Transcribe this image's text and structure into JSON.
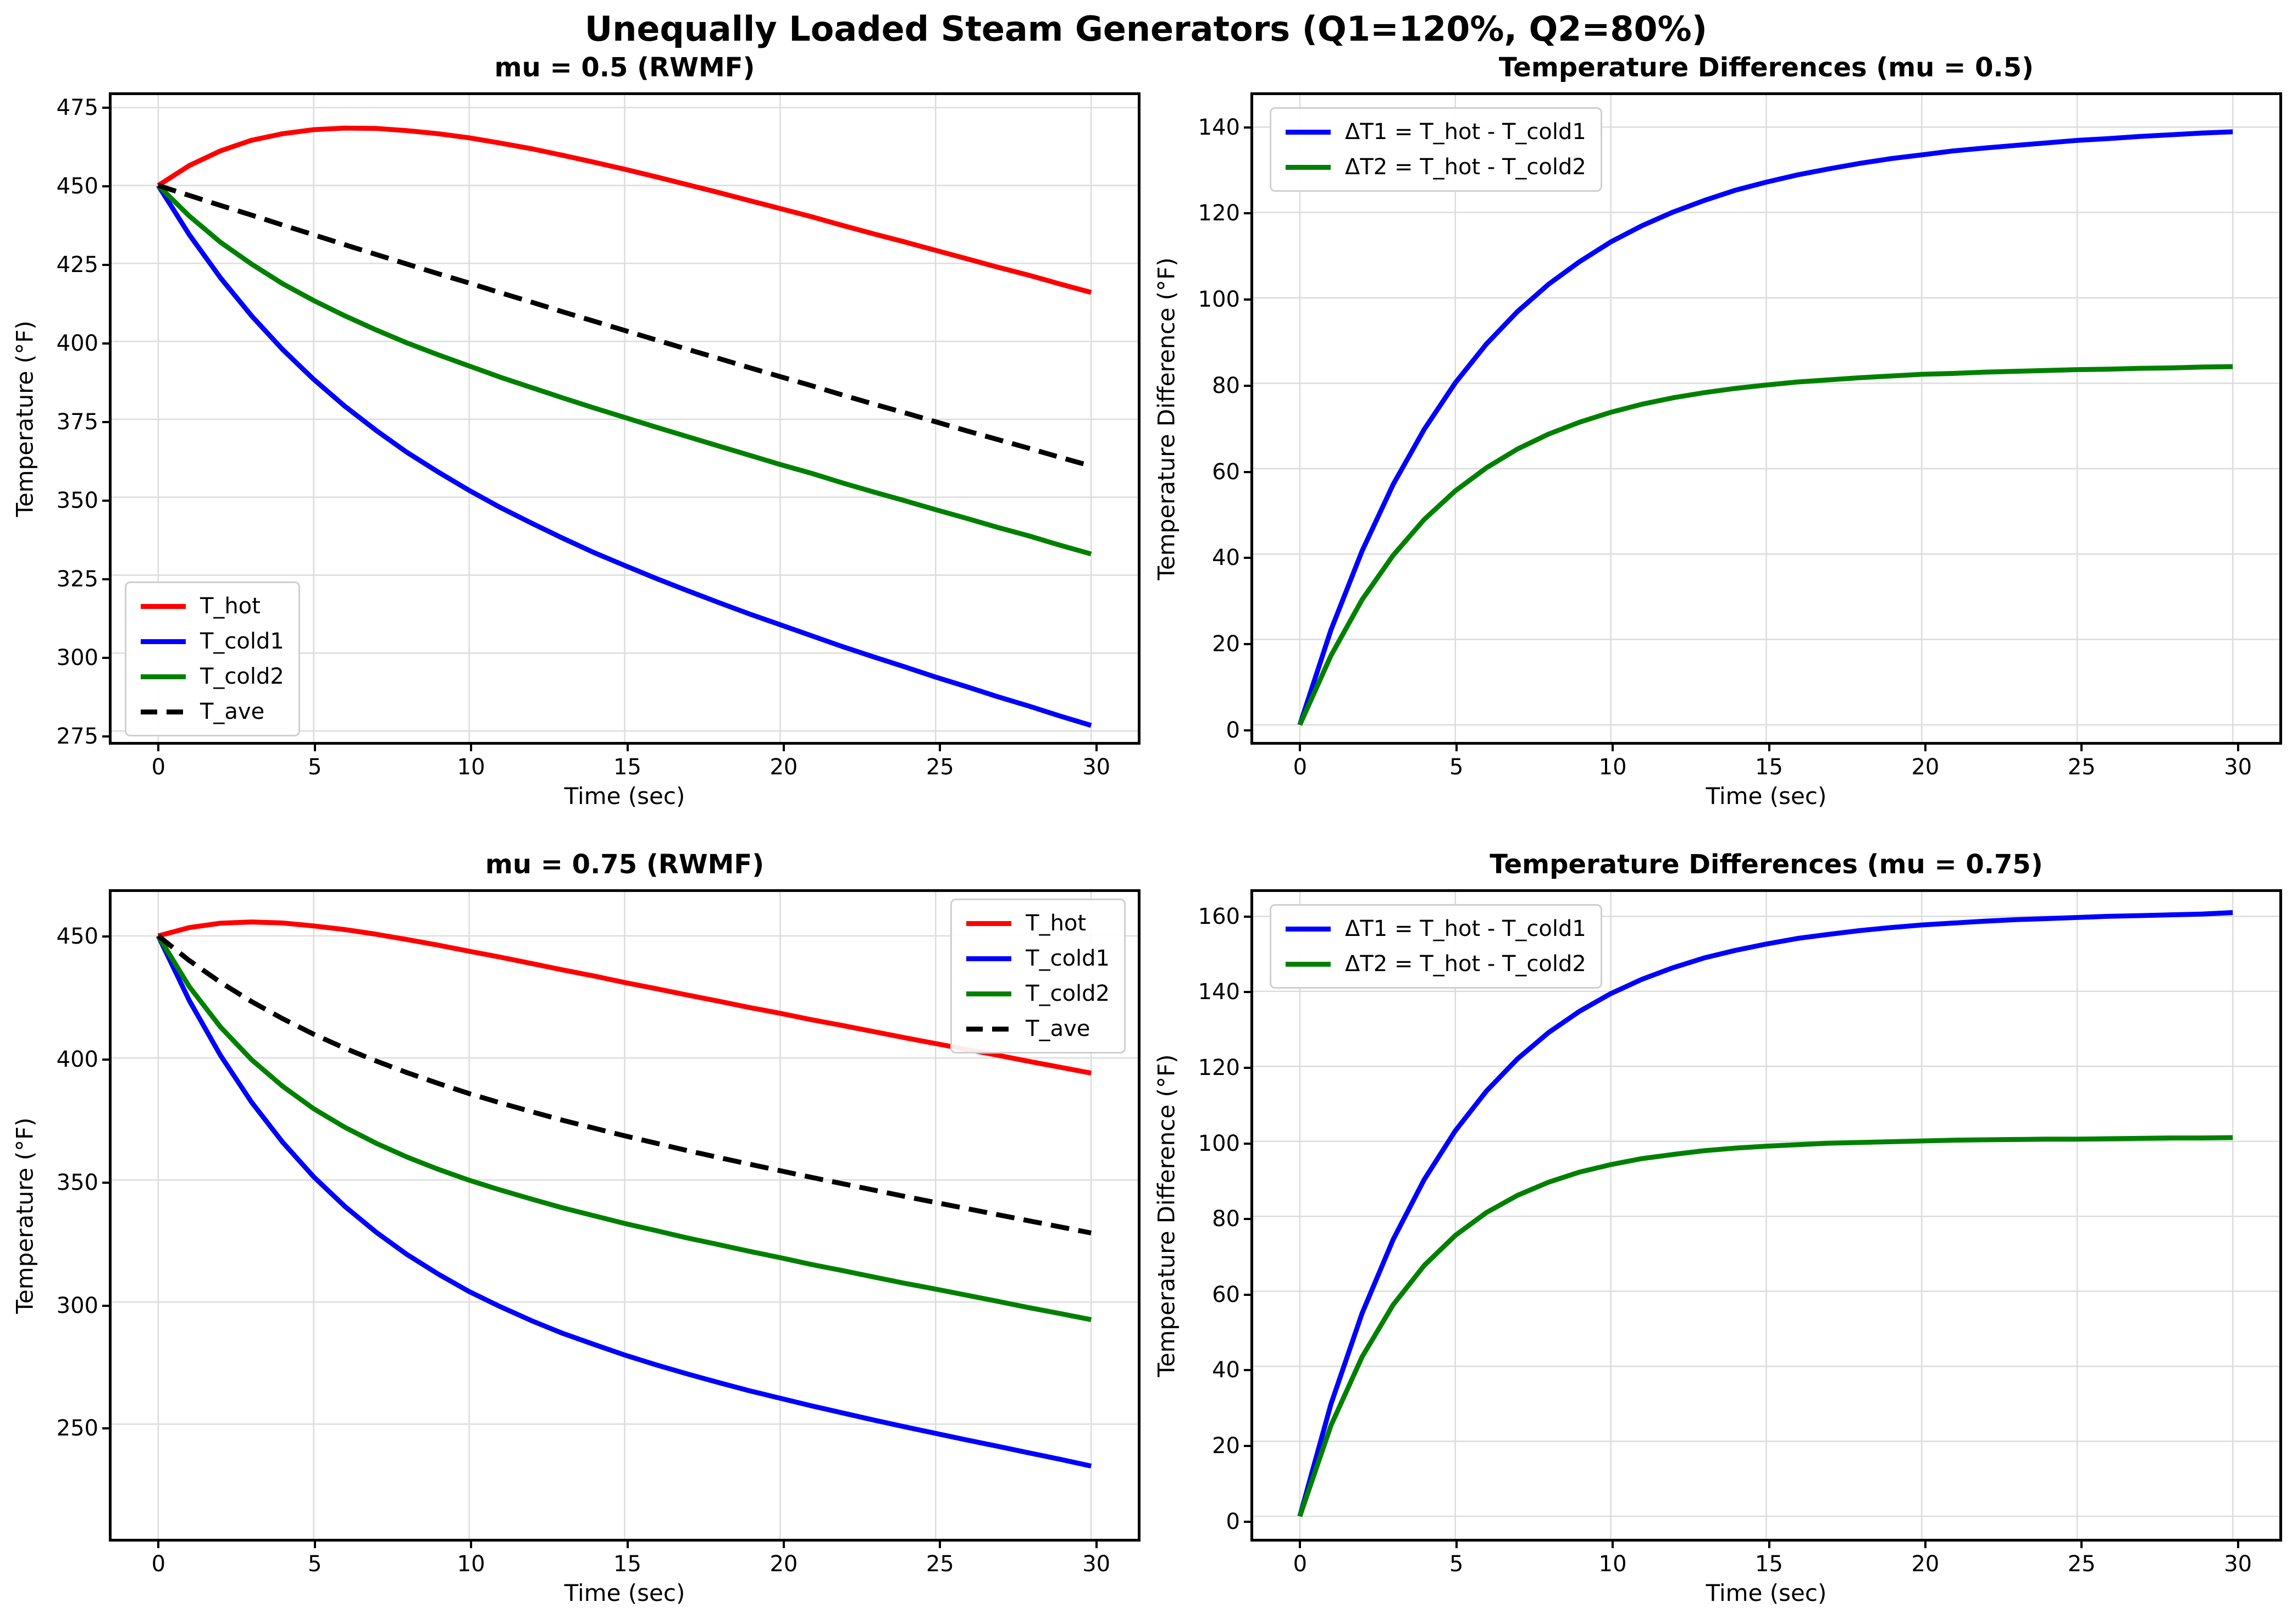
{
  "suptitle": "Unequally Loaded Steam Generators (Q1=120%, Q2=80%)",
  "style": {
    "grid_color": "#dcdcdc",
    "spine_color": "#000000",
    "background": "#ffffff",
    "series_red": "#ff0000",
    "series_blue": "#0000ff",
    "series_green": "#008000",
    "series_black": "#000000"
  },
  "chart_data": [
    {
      "type": "line",
      "title": "mu = 0.5 (RWMF)",
      "xlabel": "Time (sec)",
      "ylabel": "Temperature (°F)",
      "xlim": [
        -1.5,
        31.5
      ],
      "ylim": [
        271.5,
        479
      ],
      "xticks": [
        0,
        5,
        10,
        15,
        20,
        25,
        30
      ],
      "yticks": [
        275,
        300,
        325,
        350,
        375,
        400,
        425,
        450,
        475
      ],
      "grid": true,
      "legend_position": "lower-left",
      "x": [
        0,
        1,
        2,
        3,
        4,
        5,
        6,
        7,
        8,
        9,
        10,
        11,
        12,
        13,
        14,
        15,
        16,
        17,
        18,
        19,
        20,
        21,
        22,
        23,
        24,
        25,
        26,
        27,
        28,
        29,
        30
      ],
      "series": [
        {
          "name": "T_hot",
          "label": "T_hot",
          "color": "#ff0000",
          "linestyle": "solid",
          "values": [
            450,
            456.4,
            461.1,
            464.5,
            466.6,
            467.9,
            468.4,
            468.3,
            467.6,
            466.6,
            465.3,
            463.6,
            461.8,
            459.7,
            457.5,
            455.2,
            452.8,
            450.3,
            447.8,
            445.2,
            442.6,
            440,
            437.2,
            434.5,
            431.9,
            429.2,
            426.5,
            423.8,
            421.2,
            418.4,
            415.7
          ]
        },
        {
          "name": "T_cold1",
          "label": "T_cold1",
          "color": "#0000ff",
          "linestyle": "solid",
          "values": [
            450,
            434.2,
            420.4,
            408.2,
            397.4,
            387.8,
            379.2,
            371.5,
            364.4,
            358.1,
            352.2,
            346.7,
            341.7,
            336.9,
            332.3,
            328.1,
            324,
            320.1,
            316.3,
            312.6,
            309.1,
            305.6,
            302.1,
            298.8,
            295.6,
            292.3,
            289.2,
            286,
            283,
            279.8,
            276.8
          ]
        },
        {
          "name": "T_cold2",
          "label": "T_cold2",
          "color": "#008000",
          "linestyle": "solid",
          "values": [
            450,
            440.2,
            431.8,
            424.8,
            418.5,
            413.1,
            408.2,
            403.7,
            399.5,
            395.7,
            392.1,
            388.5,
            385.2,
            381.9,
            378.7,
            375.6,
            372.5,
            369.5,
            366.5,
            363.5,
            360.5,
            357.7,
            354.6,
            351.7,
            348.9,
            346,
            343.2,
            340.3,
            337.6,
            334.6,
            331.8
          ]
        },
        {
          "name": "T_ave",
          "label": "T_ave",
          "color": "#000000",
          "linestyle": "dashed",
          "values": [
            450,
            446.8,
            443.6,
            440.5,
            437.3,
            434.2,
            431,
            427.9,
            424.8,
            421.7,
            418.7,
            415.6,
            412.6,
            409.5,
            406.5,
            403.5,
            400.5,
            397.5,
            394.6,
            391.6,
            388.7,
            385.8,
            382.8,
            379.9,
            377.1,
            374.2,
            371.3,
            368.5,
            365.7,
            362.8,
            360
          ]
        }
      ]
    },
    {
      "type": "line",
      "title": "Temperature Differences (mu = 0.5)",
      "xlabel": "Time (sec)",
      "ylabel": "Temperature Difference (°F)",
      "xlim": [
        -1.5,
        31.5
      ],
      "ylim": [
        -4,
        147.5
      ],
      "xticks": [
        0,
        5,
        10,
        15,
        20,
        25,
        30
      ],
      "yticks": [
        0,
        20,
        40,
        60,
        80,
        100,
        120,
        140
      ],
      "grid": true,
      "legend_position": "upper-left",
      "x": [
        0,
        1,
        2,
        3,
        4,
        5,
        6,
        7,
        8,
        9,
        10,
        11,
        12,
        13,
        14,
        15,
        16,
        17,
        18,
        19,
        20,
        21,
        22,
        23,
        24,
        25,
        26,
        27,
        28,
        29,
        30
      ],
      "series": [
        {
          "name": "dT1",
          "label": "ΔT1 = T_hot - T_cold1",
          "color": "#0000ff",
          "linestyle": "solid",
          "values": [
            0,
            22.2,
            40.7,
            56.3,
            69.2,
            80.1,
            89.2,
            96.8,
            103.2,
            108.5,
            113.1,
            116.9,
            120.1,
            122.8,
            125.2,
            127.1,
            128.8,
            130.2,
            131.5,
            132.6,
            133.5,
            134.4,
            135.1,
            135.7,
            136.3,
            136.9,
            137.3,
            137.8,
            138.2,
            138.6,
            138.9
          ]
        },
        {
          "name": "dT2",
          "label": "ΔT2 = T_hot - T_cold2",
          "color": "#008000",
          "linestyle": "solid",
          "values": [
            0,
            16.2,
            29.3,
            39.7,
            48.1,
            54.8,
            60.2,
            64.6,
            68.1,
            70.9,
            73.2,
            75.1,
            76.6,
            77.8,
            78.8,
            79.6,
            80.3,
            80.8,
            81.3,
            81.7,
            82.1,
            82.3,
            82.6,
            82.8,
            83,
            83.2,
            83.3,
            83.5,
            83.6,
            83.8,
            83.9
          ]
        }
      ]
    },
    {
      "type": "line",
      "title": "mu = 0.75 (RWMF)",
      "xlabel": "Time (sec)",
      "ylabel": "Temperature (°F)",
      "xlim": [
        -1.5,
        31.5
      ],
      "ylim": [
        203,
        468
      ],
      "xticks": [
        0,
        5,
        10,
        15,
        20,
        25,
        30
      ],
      "yticks": [
        250,
        300,
        350,
        400,
        450
      ],
      "grid": true,
      "legend_position": "upper-right",
      "x": [
        0,
        1,
        2,
        3,
        4,
        5,
        6,
        7,
        8,
        9,
        10,
        11,
        12,
        13,
        14,
        15,
        16,
        17,
        18,
        19,
        20,
        21,
        22,
        23,
        24,
        25,
        26,
        27,
        28,
        29,
        30
      ],
      "series": [
        {
          "name": "T_hot",
          "label": "T_hot",
          "color": "#ff0000",
          "linestyle": "solid",
          "values": [
            450,
            453.4,
            455.2,
            455.7,
            455.3,
            454.1,
            452.6,
            450.7,
            448.5,
            446.2,
            443.7,
            441.3,
            438.7,
            436.1,
            433.6,
            430.9,
            428.4,
            425.8,
            423.3,
            420.7,
            418.3,
            415.7,
            413.3,
            410.8,
            408.3,
            405.9,
            403.5,
            401.1,
            398.6,
            396.2,
            393.8
          ]
        },
        {
          "name": "T_cold1",
          "label": "T_cold1",
          "color": "#0000ff",
          "linestyle": "solid",
          "values": [
            450,
            423.5,
            401.1,
            381.9,
            365.5,
            351.3,
            339.2,
            328.7,
            319.5,
            311.5,
            304.3,
            298.1,
            292.4,
            287.2,
            282.7,
            278.3,
            274.3,
            270.6,
            267.1,
            263.7,
            260.6,
            257.5,
            254.6,
            251.7,
            248.9,
            246.2,
            243.5,
            240.9,
            238.2,
            235.6,
            232.8
          ]
        },
        {
          "name": "T_cold2",
          "label": "T_cold2",
          "color": "#008000",
          "linestyle": "solid",
          "values": [
            450,
            429.2,
            412.7,
            399.3,
            388.4,
            379.2,
            371.6,
            365.1,
            359.4,
            354.4,
            349.9,
            345.9,
            342.2,
            338.6,
            335.4,
            332.2,
            329.3,
            326.3,
            323.6,
            320.8,
            318.2,
            315.4,
            312.9,
            310.3,
            307.7,
            305.3,
            302.8,
            300.3,
            297.7,
            295.3,
            292.8
          ]
        },
        {
          "name": "T_ave",
          "label": "T_ave",
          "color": "#000000",
          "linestyle": "dashed",
          "values": [
            450,
            439.9,
            431,
            423.1,
            416.1,
            409.7,
            404,
            398.8,
            394,
            389.6,
            385.4,
            381.6,
            378,
            374.5,
            371.3,
            368.1,
            365.1,
            362.1,
            359.3,
            356.5,
            353.8,
            351.1,
            348.5,
            345.9,
            343.3,
            340.8,
            338.3,
            335.8,
            333.3,
            330.8,
            328.3
          ]
        }
      ]
    },
    {
      "type": "line",
      "title": "Temperature Differences (mu = 0.75)",
      "xlabel": "Time (sec)",
      "ylabel": "Temperature Difference (°F)",
      "xlim": [
        -1.5,
        31.5
      ],
      "ylim": [
        -6,
        166.5
      ],
      "xticks": [
        0,
        5,
        10,
        15,
        20,
        25,
        30
      ],
      "yticks": [
        0,
        20,
        40,
        60,
        80,
        100,
        120,
        140,
        160
      ],
      "grid": true,
      "legend_position": "upper-left",
      "x": [
        0,
        1,
        2,
        3,
        4,
        5,
        6,
        7,
        8,
        9,
        10,
        11,
        12,
        13,
        14,
        15,
        16,
        17,
        18,
        19,
        20,
        21,
        22,
        23,
        24,
        25,
        26,
        27,
        28,
        29,
        30
      ],
      "series": [
        {
          "name": "dT1",
          "label": "ΔT1 = T_hot - T_cold1",
          "color": "#0000ff",
          "linestyle": "solid",
          "values": [
            0,
            29.9,
            54.1,
            73.8,
            89.8,
            102.8,
            113.4,
            122,
            129,
            134.7,
            139.4,
            143.2,
            146.3,
            148.9,
            150.9,
            152.6,
            154.1,
            155.2,
            156.2,
            157,
            157.7,
            158.2,
            158.7,
            159.1,
            159.4,
            159.7,
            160,
            160.2,
            160.4,
            160.6,
            161
          ]
        },
        {
          "name": "dT2",
          "label": "ΔT2 = T_hot - T_cold2",
          "color": "#008000",
          "linestyle": "solid",
          "values": [
            0,
            24.2,
            42.5,
            56.4,
            66.9,
            74.9,
            81,
            85.6,
            89.1,
            91.8,
            93.8,
            95.4,
            96.5,
            97.5,
            98.2,
            98.7,
            99.1,
            99.5,
            99.7,
            99.9,
            100.1,
            100.3,
            100.4,
            100.5,
            100.6,
            100.6,
            100.7,
            100.8,
            100.9,
            100.9,
            101
          ]
        }
      ]
    }
  ]
}
